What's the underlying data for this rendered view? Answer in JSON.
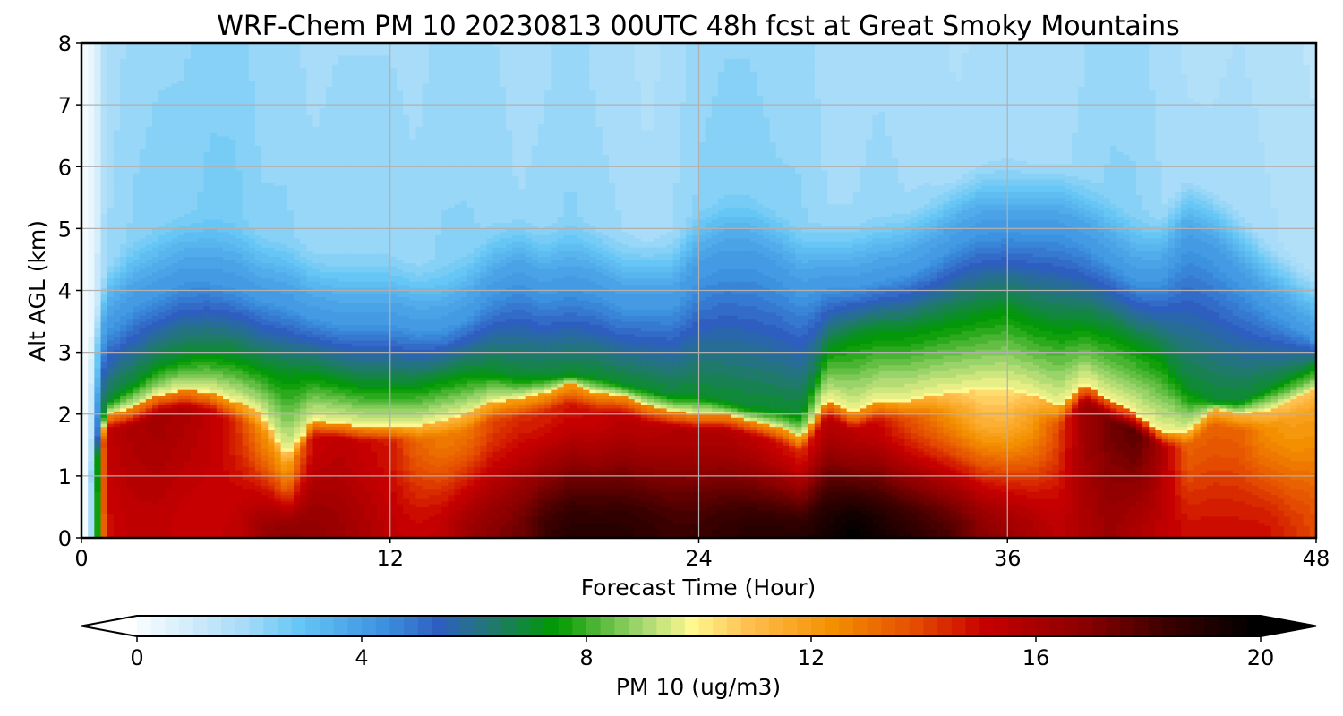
{
  "chart_data": {
    "type": "heatmap",
    "title": "WRF-Chem PM 10  20230813 00UTC 48h fcst at Great Smoky Mountains",
    "xlabel": "Forecast Time (Hour)",
    "ylabel": "Alt AGL (km)",
    "xlim": [
      0,
      48
    ],
    "ylim": [
      0,
      8
    ],
    "x_ticks": [
      0,
      12,
      24,
      36,
      48
    ],
    "x_tick_labels": [
      "0",
      "12",
      "24",
      "36",
      "48"
    ],
    "y_ticks": [
      0,
      1,
      2,
      3,
      4,
      5,
      6,
      7,
      8
    ],
    "y_tick_labels": [
      "0",
      "1",
      "2",
      "3",
      "4",
      "5",
      "6",
      "7",
      "8"
    ],
    "grid": true,
    "colorbar": {
      "label": "PM 10  (ug/m3)",
      "range": [
        0,
        20
      ],
      "ticks": [
        0,
        4,
        8,
        12,
        16,
        20
      ],
      "tick_labels": [
        "0",
        "4",
        "8",
        "12",
        "16",
        "20"
      ],
      "extend": "both",
      "orientation": "horizontal",
      "colormap_stops": [
        {
          "value": 0,
          "color": "#ffffff"
        },
        {
          "value": 2,
          "color": "#a8dcf8"
        },
        {
          "value": 3,
          "color": "#66c6f5"
        },
        {
          "value": 4.5,
          "color": "#3d92e0"
        },
        {
          "value": 5.5,
          "color": "#2e5fc0"
        },
        {
          "value": 6.5,
          "color": "#1f7a6a"
        },
        {
          "value": 7.6,
          "color": "#009a00"
        },
        {
          "value": 9,
          "color": "#9ad36a"
        },
        {
          "value": 10,
          "color": "#fff890"
        },
        {
          "value": 11,
          "color": "#ffc050"
        },
        {
          "value": 12.5,
          "color": "#f49000"
        },
        {
          "value": 14,
          "color": "#e44a00"
        },
        {
          "value": 15.2,
          "color": "#c80000"
        },
        {
          "value": 17,
          "color": "#8a0000"
        },
        {
          "value": 18.5,
          "color": "#3a0000"
        },
        {
          "value": 20,
          "color": "#000000"
        }
      ]
    },
    "times": [
      0,
      1,
      2,
      3,
      4,
      5,
      6,
      7,
      8,
      9,
      10,
      11,
      12,
      13,
      14,
      15,
      16,
      17,
      18,
      19,
      20,
      21,
      22,
      23,
      24,
      25,
      26,
      27,
      28,
      29,
      30,
      31,
      32,
      33,
      34,
      35,
      36,
      37,
      38,
      39,
      40,
      41,
      42,
      43,
      44,
      45,
      46,
      47,
      48
    ],
    "layer_bottom_value": [
      4,
      15,
      15.5,
      15.5,
      15.2,
      15.2,
      15.5,
      16.5,
      17,
      16.8,
      16.5,
      16,
      15.5,
      15.2,
      15.5,
      16.5,
      17,
      17.5,
      18.5,
      19,
      19,
      19,
      18.8,
      18.5,
      18.5,
      18.8,
      19,
      19,
      19,
      19.5,
      20,
      19.5,
      19,
      18.5,
      18,
      17,
      16.5,
      16,
      15.5,
      16,
      16.5,
      16,
      15.5,
      15,
      15,
      15,
      15,
      14.5,
      14
    ],
    "layer_mid_value": [
      3,
      15.5,
      16,
      16.3,
      16,
      15.5,
      14.5,
      12.5,
      12,
      15,
      15.5,
      15.2,
      14.8,
      13.5,
      12.8,
      13,
      14,
      14.5,
      14.5,
      14.8,
      15,
      15.5,
      15.5,
      15.8,
      15.8,
      15.8,
      15.5,
      15,
      14.5,
      15.5,
      15.5,
      15,
      14,
      13,
      12,
      11,
      11,
      12,
      14,
      16.5,
      17.5,
      18,
      16,
      13.5,
      13.5,
      13.5,
      12.5,
      12,
      12
    ],
    "pbl_top_km": [
      0.3,
      2.0,
      2.1,
      2.3,
      2.4,
      2.35,
      2.2,
      2.0,
      1.3,
      1.9,
      1.85,
      1.8,
      1.8,
      1.8,
      1.9,
      2.0,
      2.2,
      2.25,
      2.35,
      2.5,
      2.35,
      2.3,
      2.15,
      2.05,
      2.0,
      2.0,
      1.9,
      1.8,
      1.6,
      2.25,
      2.0,
      2.2,
      2.2,
      2.3,
      2.35,
      2.4,
      2.4,
      2.3,
      2.1,
      2.5,
      2.2,
      2.0,
      1.7,
      1.7,
      2.1,
      2.0,
      2.05,
      2.2,
      2.4
    ],
    "green_top_km": [
      0.8,
      2.2,
      2.5,
      2.8,
      2.95,
      3.0,
      2.95,
      2.8,
      2.7,
      2.7,
      2.6,
      2.5,
      2.5,
      2.5,
      2.6,
      2.7,
      2.7,
      2.6,
      2.6,
      2.65,
      2.6,
      2.5,
      2.4,
      2.3,
      2.3,
      2.2,
      2.1,
      2.05,
      2.0,
      3.1,
      3.3,
      3.4,
      3.4,
      3.5,
      3.6,
      3.7,
      3.8,
      3.6,
      3.5,
      3.5,
      3.4,
      3.2,
      3.0,
      2.4,
      2.2,
      2.2,
      2.4,
      2.6,
      2.8
    ],
    "blue_top_km": [
      1.8,
      3.4,
      3.8,
      4.0,
      4.2,
      4.2,
      4.1,
      3.9,
      3.8,
      3.6,
      3.5,
      3.5,
      3.5,
      3.4,
      3.4,
      3.6,
      4.0,
      4.2,
      4.0,
      4.1,
      4.0,
      3.8,
      3.8,
      3.8,
      4.3,
      4.5,
      4.5,
      4.3,
      4.0,
      4.1,
      4.1,
      4.2,
      4.3,
      4.5,
      4.8,
      5.0,
      5.0,
      5.0,
      5.0,
      4.8,
      4.5,
      4.2,
      4.2,
      4.8,
      4.6,
      4.2,
      3.8,
      3.5,
      3.2
    ],
    "upper_value": [
      0.5,
      2.2,
      2.5,
      2.6,
      2.6,
      2.8,
      2.8,
      2.5,
      2.5,
      2.3,
      2.4,
      2.4,
      2.4,
      2.3,
      2.5,
      2.5,
      2.4,
      2.2,
      2.3,
      2.5,
      2.3,
      2.2,
      2.0,
      2.2,
      2.5,
      2.6,
      2.6,
      2.5,
      2.5,
      2.2,
      2.2,
      2.3,
      2.2,
      2.2,
      2.0,
      2.1,
      2.2,
      2.1,
      2.1,
      2.3,
      2.5,
      2.5,
      2.2,
      2.0,
      2.0,
      2.1,
      2.0,
      1.9,
      1.8
    ]
  }
}
